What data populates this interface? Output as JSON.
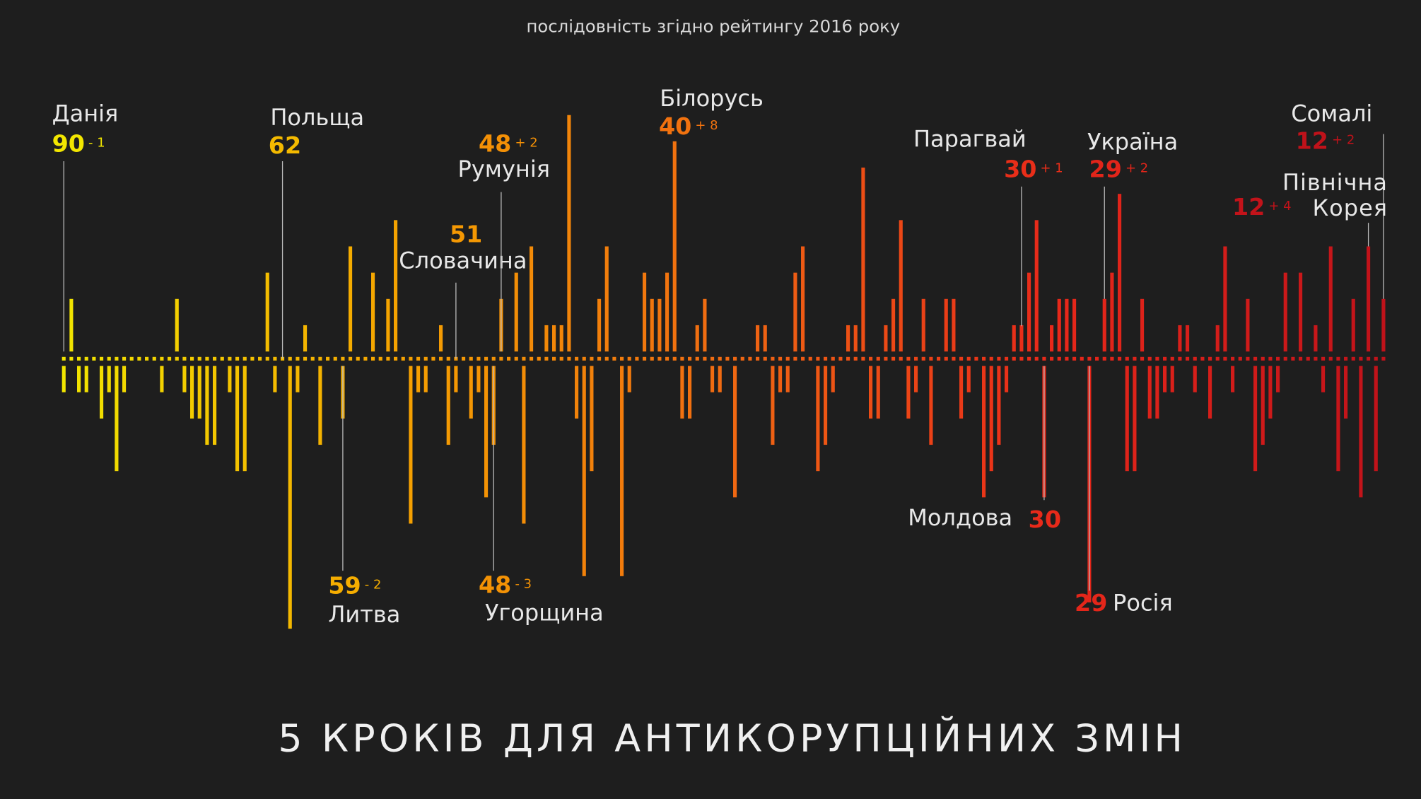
{
  "chart_data": {
    "type": "bar",
    "subtitle": "послідовність згідно рейтингу 2016 року",
    "footer": "5 КРОКІВ ДЛЯ АНТИКОРУПЦІЙНИХ ЗМІН",
    "colors": [
      "#f2e600",
      "#f5a300",
      "#f06a12",
      "#e8281a",
      "#c0121a"
    ],
    "categories": [
      "Данія",
      null,
      null,
      null,
      null,
      null,
      null,
      null,
      null,
      null,
      null,
      null,
      null,
      null,
      null,
      null,
      null,
      null,
      null,
      null,
      null,
      null,
      null,
      null,
      null,
      null,
      null,
      null,
      null,
      "Польща",
      null,
      null,
      null,
      null,
      null,
      null,
      null,
      "Литва",
      null,
      null,
      null,
      null,
      null,
      null,
      null,
      null,
      null,
      null,
      null,
      null,
      null,
      null,
      "Словачина",
      null,
      null,
      null,
      null,
      "Угорщина",
      "Румунія",
      null,
      null,
      null,
      null,
      null,
      null,
      null,
      null,
      null,
      null,
      null,
      null,
      null,
      null,
      null,
      null,
      null,
      null,
      null,
      null,
      null,
      null,
      "Білорусь",
      null,
      null,
      null,
      null,
      null,
      null,
      null,
      null,
      null,
      null,
      null,
      null,
      null,
      null,
      null,
      null,
      null,
      null,
      null,
      null,
      null,
      null,
      null,
      null,
      null,
      null,
      null,
      null,
      null,
      null,
      null,
      null,
      null,
      null,
      null,
      null,
      null,
      null,
      null,
      null,
      null,
      null,
      null,
      null,
      null,
      "Парагвай",
      null,
      null,
      "Молдова",
      null,
      null,
      null,
      null,
      null,
      "Росія",
      null,
      "Україна",
      null,
      null,
      null,
      null,
      null,
      null,
      null,
      null,
      null,
      null,
      null,
      null,
      null,
      null,
      null,
      null,
      null,
      null,
      null,
      null,
      null,
      null,
      null,
      null,
      null,
      null,
      null,
      null,
      null,
      null,
      null,
      null,
      null,
      null,
      "Північна Корея",
      null,
      "Сомалі"
    ],
    "scores": [
      90,
      null,
      null,
      null,
      null,
      null,
      null,
      null,
      null,
      null,
      null,
      null,
      null,
      null,
      null,
      null,
      null,
      null,
      null,
      null,
      null,
      null,
      null,
      null,
      null,
      null,
      null,
      null,
      null,
      62,
      null,
      null,
      null,
      null,
      null,
      null,
      null,
      59,
      null,
      null,
      null,
      null,
      null,
      null,
      null,
      null,
      null,
      null,
      null,
      null,
      null,
      null,
      51,
      null,
      null,
      null,
      null,
      48,
      48,
      null,
      null,
      null,
      null,
      null,
      null,
      null,
      null,
      null,
      null,
      null,
      null,
      null,
      null,
      null,
      null,
      null,
      null,
      null,
      null,
      null,
      null,
      40,
      null,
      null,
      null,
      null,
      null,
      null,
      null,
      null,
      null,
      null,
      null,
      null,
      null,
      null,
      null,
      null,
      null,
      null,
      null,
      null,
      null,
      null,
      null,
      null,
      null,
      null,
      null,
      null,
      null,
      null,
      null,
      null,
      null,
      null,
      null,
      null,
      null,
      null,
      null,
      null,
      null,
      null,
      null,
      null,
      null,
      30,
      null,
      null,
      30,
      null,
      null,
      null,
      null,
      null,
      29,
      null,
      29,
      null,
      null,
      null,
      null,
      null,
      null,
      null,
      null,
      null,
      null,
      null,
      null,
      null,
      null,
      null,
      null,
      null,
      null,
      null,
      null,
      null,
      null,
      null,
      null,
      null,
      null,
      null,
      null,
      null,
      null,
      null,
      null,
      null,
      null,
      12,
      null,
      12
    ],
    "values": [
      -1,
      2,
      -1,
      -1,
      0,
      -2,
      -1,
      -4,
      -1,
      0,
      0,
      0,
      0,
      -1,
      0,
      2,
      -1,
      -2,
      -2,
      -3,
      -3,
      0,
      -1,
      -4,
      -4,
      0,
      0,
      3,
      -1,
      0,
      -10,
      -1,
      1,
      0,
      -3,
      0,
      0,
      -2,
      4,
      0,
      0,
      3,
      0,
      2,
      5,
      0,
      -6,
      -1,
      -1,
      0,
      1,
      -3,
      -1,
      0,
      -2,
      -1,
      -5,
      -3,
      2,
      0,
      3,
      -6,
      4,
      0,
      1,
      1,
      1,
      9,
      -2,
      -8,
      -4,
      2,
      4,
      0,
      -8,
      -1,
      0,
      3,
      2,
      2,
      3,
      8,
      -2,
      -2,
      1,
      2,
      -1,
      -1,
      0,
      -5,
      0,
      0,
      1,
      1,
      -3,
      -1,
      -1,
      3,
      4,
      0,
      -4,
      -3,
      -1,
      0,
      1,
      1,
      7,
      -2,
      -2,
      1,
      2,
      5,
      -2,
      -1,
      2,
      -3,
      0,
      2,
      2,
      -2,
      -1,
      0,
      -5,
      -4,
      -3,
      -1,
      1,
      1,
      3,
      5,
      -5,
      1,
      2,
      2,
      2,
      0,
      -9,
      0,
      2,
      3,
      6,
      -4,
      -4,
      2,
      -2,
      -2,
      -1,
      -1,
      1,
      1,
      -1,
      0,
      -2,
      1,
      4,
      -1,
      0,
      2,
      -4,
      -3,
      -2,
      -1,
      3,
      0,
      3,
      0,
      1,
      -1,
      4,
      -4,
      -2,
      2,
      -5,
      4,
      -4,
      2
    ],
    "value_labels": [
      "- 1",
      null,
      null,
      null,
      null,
      null,
      null,
      null,
      null,
      null,
      null,
      null,
      null,
      null,
      null,
      null,
      null,
      null,
      null,
      null,
      null,
      null,
      null,
      null,
      null,
      null,
      null,
      null,
      null,
      null,
      null,
      null,
      null,
      null,
      null,
      null,
      null,
      "- 2",
      null,
      null,
      null,
      null,
      null,
      null,
      null,
      null,
      null,
      null,
      null,
      null,
      null,
      null,
      null,
      null,
      null,
      null,
      null,
      "- 3",
      "+ 2",
      null,
      null,
      null,
      null,
      null,
      null,
      null,
      null,
      null,
      null,
      null,
      null,
      null,
      null,
      null,
      null,
      null,
      null,
      null,
      null,
      null,
      null,
      "+ 8",
      null,
      null,
      null,
      null,
      null,
      null,
      null,
      null,
      null,
      null,
      null,
      null,
      null,
      null,
      null,
      null,
      null,
      null,
      null,
      null,
      null,
      null,
      null,
      null,
      null,
      null,
      null,
      null,
      null,
      null,
      null,
      null,
      null,
      null,
      null,
      null,
      null,
      null,
      null,
      null,
      null,
      null,
      null,
      null,
      null,
      "+ 1",
      null,
      null,
      null,
      null,
      null,
      null,
      null,
      null,
      null,
      null,
      "+ 2",
      null,
      null,
      null,
      null,
      null,
      null,
      null,
      null,
      null,
      null,
      null,
      null,
      null,
      null,
      null,
      null,
      null,
      null,
      null,
      null,
      null,
      null,
      null,
      null,
      null,
      null,
      null,
      null,
      null,
      null,
      null,
      null,
      null,
      null,
      "+ 4",
      null,
      "+ 2"
    ]
  }
}
